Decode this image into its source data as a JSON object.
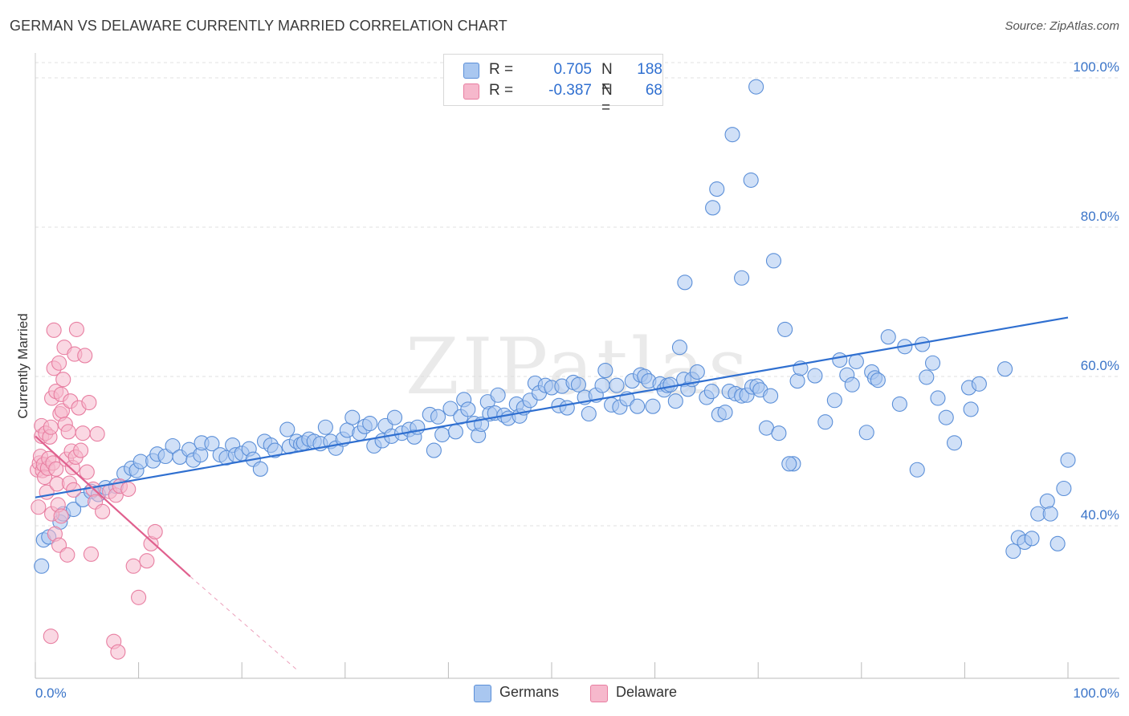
{
  "header": {
    "title": "GERMAN VS DELAWARE CURRENTLY MARRIED CORRELATION CHART",
    "source": "Source: ZipAtlas.com"
  },
  "legend": {
    "series1": {
      "r_label": "R =",
      "r_value": "0.705",
      "n_label": "N =",
      "n_value": "188"
    },
    "series2": {
      "r_label": "R =",
      "r_value": "-0.387",
      "n_label": "N =",
      "n_value": "68"
    }
  },
  "bottom_legend": {
    "series1": "Germans",
    "series2": "Delaware"
  },
  "colors": {
    "germans_fill": "#a9c7f0",
    "germans_stroke": "#5b8fd8",
    "germans_line": "#2f6fd0",
    "delaware_fill": "#f6b8cc",
    "delaware_stroke": "#e87ea1",
    "delaware_line": "#e0608e",
    "tick_text": "#3a74c8"
  },
  "watermark": "ZIPatlas",
  "chart_data": {
    "type": "scatter",
    "title": "GERMAN VS DELAWARE CURRENTLY MARRIED CORRELATION CHART",
    "xlabel": "",
    "ylabel": "Currently Married",
    "xlim": [
      0,
      100
    ],
    "ylim": [
      20.5,
      104
    ],
    "x_tick_labels": [
      "0.0%",
      "100.0%"
    ],
    "y_ticks": [
      40,
      60,
      80,
      100
    ],
    "y_tick_labels": [
      "40.0%",
      "60.0%",
      "80.0%",
      "100.0%"
    ],
    "grid": true,
    "series": [
      {
        "name": "Germans",
        "r": 0.705,
        "n": 188,
        "trend": {
          "x": [
            0,
            100
          ],
          "y": [
            43.8,
            67.9
          ]
        },
        "points": [
          [
            0.6,
            34.6
          ],
          [
            0.8,
            38.1
          ],
          [
            1.3,
            38.5
          ],
          [
            2.4,
            40.5
          ],
          [
            2.7,
            41.6
          ],
          [
            3.7,
            42.2
          ],
          [
            4.6,
            43.5
          ],
          [
            5.4,
            44.6
          ],
          [
            6.1,
            44.2
          ],
          [
            6.8,
            45.1
          ],
          [
            7.8,
            45.3
          ],
          [
            8.6,
            47.0
          ],
          [
            9.3,
            47.7
          ],
          [
            9.8,
            47.4
          ],
          [
            10.2,
            48.6
          ],
          [
            11.4,
            48.7
          ],
          [
            11.8,
            49.6
          ],
          [
            12.6,
            49.3
          ],
          [
            13.3,
            50.7
          ],
          [
            14.0,
            49.2
          ],
          [
            14.9,
            50.2
          ],
          [
            15.3,
            48.8
          ],
          [
            16.0,
            49.5
          ],
          [
            16.1,
            51.1
          ],
          [
            17.1,
            51.0
          ],
          [
            17.9,
            49.5
          ],
          [
            18.5,
            49.1
          ],
          [
            19.1,
            50.8
          ],
          [
            19.4,
            49.5
          ],
          [
            20.0,
            49.7
          ],
          [
            20.7,
            50.3
          ],
          [
            21.1,
            48.9
          ],
          [
            21.8,
            47.6
          ],
          [
            22.2,
            51.3
          ],
          [
            22.8,
            50.8
          ],
          [
            23.2,
            50.1
          ],
          [
            24.4,
            52.9
          ],
          [
            24.6,
            50.6
          ],
          [
            25.3,
            51.3
          ],
          [
            25.7,
            50.9
          ],
          [
            26.0,
            51.1
          ],
          [
            26.5,
            51.6
          ],
          [
            27.0,
            51.3
          ],
          [
            27.6,
            51.0
          ],
          [
            28.1,
            53.2
          ],
          [
            28.6,
            51.3
          ],
          [
            29.1,
            50.4
          ],
          [
            29.8,
            51.6
          ],
          [
            30.2,
            52.8
          ],
          [
            30.7,
            54.5
          ],
          [
            31.4,
            52.4
          ],
          [
            31.9,
            53.3
          ],
          [
            32.4,
            53.7
          ],
          [
            32.8,
            50.7
          ],
          [
            33.6,
            51.4
          ],
          [
            33.9,
            53.4
          ],
          [
            34.5,
            52.0
          ],
          [
            34.8,
            54.5
          ],
          [
            35.5,
            52.4
          ],
          [
            36.2,
            52.9
          ],
          [
            36.7,
            51.9
          ],
          [
            37.0,
            53.2
          ],
          [
            38.2,
            54.9
          ],
          [
            38.6,
            50.1
          ],
          [
            39.0,
            54.6
          ],
          [
            39.4,
            52.2
          ],
          [
            40.2,
            55.7
          ],
          [
            40.7,
            52.6
          ],
          [
            41.2,
            54.6
          ],
          [
            41.5,
            56.9
          ],
          [
            41.9,
            55.6
          ],
          [
            42.5,
            53.7
          ],
          [
            42.9,
            52.1
          ],
          [
            43.2,
            53.6
          ],
          [
            43.8,
            56.6
          ],
          [
            44.0,
            55.0
          ],
          [
            44.5,
            55.1
          ],
          [
            44.8,
            57.5
          ],
          [
            45.4,
            54.8
          ],
          [
            45.8,
            54.4
          ],
          [
            46.6,
            56.3
          ],
          [
            46.9,
            54.7
          ],
          [
            47.3,
            55.8
          ],
          [
            47.9,
            56.8
          ],
          [
            48.4,
            59.1
          ],
          [
            48.8,
            57.8
          ],
          [
            49.4,
            58.8
          ],
          [
            50.0,
            58.5
          ],
          [
            50.7,
            56.1
          ],
          [
            51.0,
            58.7
          ],
          [
            51.5,
            55.8
          ],
          [
            52.1,
            59.2
          ],
          [
            52.6,
            58.9
          ],
          [
            53.2,
            57.2
          ],
          [
            53.6,
            55.0
          ],
          [
            54.3,
            57.5
          ],
          [
            54.9,
            58.8
          ],
          [
            55.2,
            60.8
          ],
          [
            55.8,
            56.2
          ],
          [
            56.3,
            58.8
          ],
          [
            56.6,
            55.9
          ],
          [
            57.3,
            57.0
          ],
          [
            57.8,
            59.4
          ],
          [
            58.3,
            56.0
          ],
          [
            58.6,
            60.2
          ],
          [
            59.0,
            60.0
          ],
          [
            59.4,
            59.4
          ],
          [
            59.8,
            56.0
          ],
          [
            60.5,
            59.0
          ],
          [
            60.9,
            58.2
          ],
          [
            61.2,
            58.8
          ],
          [
            61.5,
            58.9
          ],
          [
            62.0,
            56.7
          ],
          [
            62.8,
            59.6
          ],
          [
            63.2,
            58.3
          ],
          [
            63.6,
            59.6
          ],
          [
            64.1,
            60.6
          ],
          [
            65.0,
            57.2
          ],
          [
            65.5,
            58.0
          ],
          [
            66.2,
            54.9
          ],
          [
            66.8,
            55.2
          ],
          [
            67.2,
            58.0
          ],
          [
            67.8,
            57.7
          ],
          [
            68.4,
            57.4
          ],
          [
            68.9,
            57.5
          ],
          [
            69.4,
            58.6
          ],
          [
            69.9,
            58.7
          ],
          [
            70.2,
            58.2
          ],
          [
            70.8,
            53.1
          ],
          [
            71.2,
            57.4
          ],
          [
            72.0,
            52.4
          ],
          [
            72.6,
            66.3
          ],
          [
            73.4,
            48.3
          ],
          [
            73.8,
            59.4
          ],
          [
            74.1,
            61.1
          ],
          [
            75.5,
            60.1
          ],
          [
            76.5,
            53.9
          ],
          [
            77.4,
            56.8
          ],
          [
            77.9,
            62.2
          ],
          [
            78.6,
            60.2
          ],
          [
            79.1,
            58.9
          ],
          [
            79.5,
            62.0
          ],
          [
            80.5,
            52.5
          ],
          [
            81.0,
            60.6
          ],
          [
            81.3,
            59.8
          ],
          [
            81.6,
            59.5
          ],
          [
            82.6,
            65.3
          ],
          [
            83.7,
            56.3
          ],
          [
            84.2,
            64.0
          ],
          [
            85.4,
            47.5
          ],
          [
            85.9,
            64.3
          ],
          [
            86.3,
            59.9
          ],
          [
            86.9,
            61.8
          ],
          [
            87.4,
            57.1
          ],
          [
            88.2,
            54.5
          ],
          [
            89.0,
            51.1
          ],
          [
            90.4,
            58.5
          ],
          [
            90.6,
            55.6
          ],
          [
            91.4,
            59.0
          ],
          [
            93.9,
            61.0
          ],
          [
            94.7,
            36.6
          ],
          [
            95.2,
            38.4
          ],
          [
            95.8,
            37.8
          ],
          [
            96.5,
            38.3
          ],
          [
            97.1,
            41.6
          ],
          [
            98.0,
            43.3
          ],
          [
            98.3,
            41.6
          ],
          [
            99.0,
            37.6
          ],
          [
            99.6,
            45.0
          ],
          [
            100.0,
            48.8
          ],
          [
            73.0,
            48.3
          ],
          [
            62.4,
            63.9
          ],
          [
            62.9,
            72.6
          ],
          [
            71.5,
            75.5
          ],
          [
            65.6,
            82.6
          ],
          [
            66.0,
            85.1
          ],
          [
            67.5,
            92.4
          ],
          [
            68.4,
            73.2
          ],
          [
            69.3,
            86.3
          ],
          [
            69.8,
            98.8
          ]
        ]
      },
      {
        "name": "Delaware",
        "r": -0.387,
        "n": 68,
        "trend": {
          "x": [
            0,
            15.0
          ],
          "y": [
            52.0,
            33.2
          ]
        },
        "trend_dashed": {
          "x": [
            15.0,
            25.5
          ],
          "y": [
            33.2,
            20.5
          ]
        },
        "points": [
          [
            0.2,
            47.5
          ],
          [
            0.3,
            42.5
          ],
          [
            0.4,
            48.4
          ],
          [
            0.5,
            49.3
          ],
          [
            0.6,
            52.0
          ],
          [
            0.6,
            53.4
          ],
          [
            0.7,
            47.4
          ],
          [
            0.8,
            48.2
          ],
          [
            0.9,
            46.5
          ],
          [
            1.0,
            52.4
          ],
          [
            1.1,
            44.5
          ],
          [
            1.2,
            47.7
          ],
          [
            1.3,
            49.0
          ],
          [
            1.4,
            51.9
          ],
          [
            1.5,
            53.2
          ],
          [
            1.6,
            41.6
          ],
          [
            1.6,
            57.1
          ],
          [
            1.7,
            48.4
          ],
          [
            1.8,
            61.1
          ],
          [
            1.8,
            66.2
          ],
          [
            1.9,
            38.9
          ],
          [
            2.0,
            47.6
          ],
          [
            2.0,
            58.0
          ],
          [
            2.1,
            45.6
          ],
          [
            2.2,
            42.8
          ],
          [
            2.3,
            37.4
          ],
          [
            2.3,
            61.8
          ],
          [
            2.4,
            55.0
          ],
          [
            2.5,
            57.6
          ],
          [
            2.5,
            41.3
          ],
          [
            2.6,
            55.4
          ],
          [
            2.7,
            59.6
          ],
          [
            2.8,
            63.9
          ],
          [
            2.9,
            53.6
          ],
          [
            3.0,
            48.9
          ],
          [
            3.1,
            36.1
          ],
          [
            3.2,
            52.6
          ],
          [
            3.3,
            45.7
          ],
          [
            3.4,
            56.7
          ],
          [
            3.5,
            50.0
          ],
          [
            3.6,
            47.8
          ],
          [
            3.7,
            44.8
          ],
          [
            3.8,
            63.0
          ],
          [
            3.9,
            49.2
          ],
          [
            4.0,
            66.3
          ],
          [
            4.2,
            55.8
          ],
          [
            4.4,
            50.1
          ],
          [
            4.6,
            52.4
          ],
          [
            4.8,
            62.8
          ],
          [
            5.0,
            47.2
          ],
          [
            5.2,
            56.5
          ],
          [
            5.4,
            36.2
          ],
          [
            5.6,
            44.9
          ],
          [
            5.8,
            43.2
          ],
          [
            6.0,
            52.3
          ],
          [
            6.5,
            41.9
          ],
          [
            7.2,
            44.6
          ],
          [
            7.8,
            44.1
          ],
          [
            8.2,
            45.3
          ],
          [
            9.0,
            44.9
          ],
          [
            9.5,
            34.6
          ],
          [
            10.0,
            30.4
          ],
          [
            10.8,
            35.3
          ],
          [
            11.2,
            37.6
          ],
          [
            11.6,
            39.2
          ],
          [
            1.5,
            25.2
          ],
          [
            7.6,
            24.5
          ],
          [
            8.0,
            23.1
          ]
        ]
      }
    ]
  }
}
